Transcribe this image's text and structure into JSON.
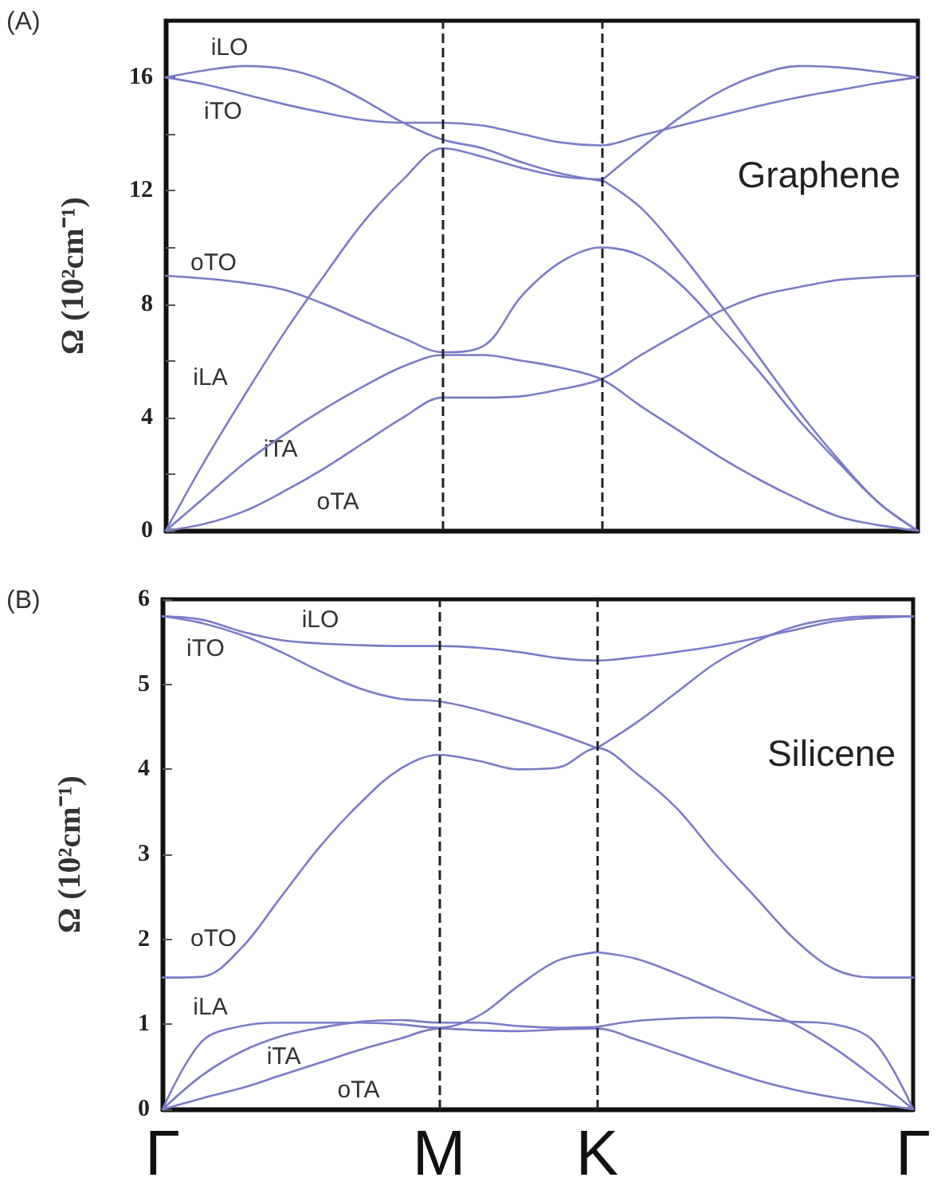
{
  "chart_data": [
    {
      "type": "line",
      "title": "Graphene",
      "ylabel": "Ω (10²cm⁻¹)",
      "marker": "none",
      "grid": false,
      "tick_labels": "y",
      "annotations": [
        "(A)",
        "iLO",
        "iTO",
        "oTO",
        "iLA",
        "iTA",
        "oTA"
      ],
      "categories": [
        "Γ",
        null,
        null,
        null,
        null,
        null,
        null,
        "M",
        null,
        null,
        null,
        "K",
        null,
        null,
        null,
        null,
        null,
        null,
        null,
        "Γ"
      ],
      "ylim": [
        0,
        18
      ],
      "yticks": [
        0,
        {
          "value": 2,
          "label": null
        },
        4,
        {
          "value": 6,
          "label": null
        },
        8,
        {
          "value": 10,
          "label": null
        },
        12,
        {
          "value": 14,
          "label": null
        },
        16
      ],
      "ref_lines": [
        {
          "axis": "x",
          "value": "M",
          "color": "#222222",
          "line_style": "dashed"
        },
        {
          "axis": "x",
          "value": "K",
          "color": "#222222",
          "line_style": "dashed"
        }
      ],
      "series": [
        {
          "color": "#7b7bc8",
          "values": [
            0,
            0.25,
            0.7,
            1.4,
            2.2,
            3.1,
            4.0,
            4.7,
            4.7,
            4.75,
            5.0,
            5.35,
            6.2,
            7.0,
            7.75,
            8.3,
            8.6,
            8.85,
            8.95,
            9.0
          ]
        },
        {
          "color": "#7b7bc8",
          "values": [
            0,
            1.2,
            2.4,
            3.4,
            4.3,
            5.1,
            5.8,
            6.2,
            6.2,
            6.0,
            5.75,
            5.35,
            4.4,
            3.5,
            2.6,
            1.8,
            1.1,
            0.5,
            0.2,
            0
          ]
        },
        {
          "color": "#7b7bc8",
          "values": [
            0,
            2.5,
            4.8,
            7.0,
            9.0,
            10.9,
            12.4,
            13.5,
            13.2,
            12.8,
            12.5,
            12.4,
            null,
            null,
            null,
            null,
            null,
            null,
            null,
            null
          ]
        },
        {
          "color": "#7b7bc8",
          "values": [
            null,
            null,
            null,
            null,
            null,
            null,
            null,
            null,
            null,
            null,
            null,
            12.4,
            11.4,
            9.8,
            8.0,
            6.1,
            4.2,
            2.5,
            1.0,
            0
          ]
        },
        {
          "color": "#7b7bc8",
          "values": [
            9.0,
            8.9,
            8.75,
            8.5,
            8.0,
            7.4,
            6.8,
            6.3,
            6.5,
            8.3,
            9.5,
            10.0,
            9.7,
            8.7,
            7.2,
            5.6,
            3.9,
            2.4,
            1.0,
            0
          ]
        },
        {
          "color": "#7b7bc8",
          "values": [
            16,
            15.75,
            15.4,
            15.05,
            14.75,
            14.5,
            14.4,
            14.4,
            14.3,
            14.0,
            13.7,
            13.6,
            13.95,
            14.3,
            14.65,
            15.0,
            15.3,
            15.55,
            15.8,
            16
          ]
        },
        {
          "color": "#7b7bc8",
          "values": [
            16,
            16.25,
            16.4,
            16.3,
            15.9,
            15.2,
            14.4,
            13.8,
            13.5,
            13.0,
            12.6,
            12.35,
            null,
            null,
            null,
            null,
            null,
            null,
            null,
            null
          ]
        },
        {
          "color": "#7b7bc8",
          "values": [
            null,
            null,
            null,
            null,
            null,
            null,
            null,
            null,
            null,
            null,
            null,
            12.35,
            13.5,
            14.6,
            15.5,
            16.1,
            16.4,
            16.35,
            16.2,
            16
          ]
        }
      ]
    },
    {
      "type": "line",
      "title": "Silicene",
      "ylabel": "Ω (10²cm⁻¹)",
      "marker": "none",
      "grid": false,
      "annotations": [
        "(B)",
        "iLO",
        "iTO",
        "oTO",
        "iLA",
        "iTA",
        "oTA"
      ],
      "categories": [
        "Γ",
        null,
        null,
        null,
        null,
        null,
        null,
        "M",
        null,
        null,
        null,
        "K",
        null,
        null,
        null,
        null,
        null,
        null,
        null,
        "Γ"
      ],
      "ylim": [
        0,
        6
      ],
      "yticks": [
        0,
        1,
        2,
        3,
        4,
        5,
        6
      ],
      "ref_lines": [
        {
          "axis": "x",
          "value": "M",
          "color": "#222222",
          "line_style": "dashed"
        },
        {
          "axis": "x",
          "value": "K",
          "color": "#222222",
          "line_style": "dashed"
        }
      ],
      "series": [
        {
          "color": "#7b7bc8",
          "values": [
            0,
            0.13,
            0.25,
            0.4,
            0.55,
            0.7,
            0.83,
            0.95,
            0.93,
            0.92,
            0.94,
            0.95,
            0.82,
            0.66,
            0.5,
            0.35,
            0.23,
            0.14,
            0.07,
            0
          ]
        },
        {
          "color": "#7b7bc8",
          "values": [
            0,
            0.4,
            0.68,
            0.86,
            0.96,
            1.03,
            1.05,
            1.02,
            1.02,
            0.98,
            0.96,
            0.97,
            null,
            null,
            null,
            null,
            null,
            null,
            null,
            null
          ]
        },
        {
          "color": "#7b7bc8",
          "values": [
            null,
            null,
            null,
            null,
            null,
            null,
            null,
            null,
            null,
            null,
            null,
            0.97,
            1.04,
            1.07,
            1.08,
            1.06,
            1.03,
            1.0,
            0.8,
            0
          ]
        },
        {
          "color": "#7b7bc8",
          "values": [
            0,
            0.8,
            0.98,
            1.02,
            1.02,
            1.02,
            1.0,
            0.96,
            1.1,
            1.45,
            1.75,
            1.85,
            null,
            null,
            null,
            null,
            null,
            null,
            null,
            null
          ]
        },
        {
          "color": "#7b7bc8",
          "values": [
            null,
            null,
            null,
            null,
            null,
            null,
            null,
            null,
            null,
            null,
            null,
            1.85,
            1.77,
            1.6,
            1.4,
            1.2,
            1.0,
            0.72,
            0.38,
            0
          ]
        },
        {
          "color": "#7b7bc8",
          "values": [
            1.55,
            1.56,
            1.9,
            2.5,
            3.1,
            3.6,
            4.0,
            4.17,
            4.1,
            4.0,
            4.02,
            4.25,
            3.95,
            3.55,
            3.0,
            2.5,
            2.0,
            1.65,
            1.55,
            1.55
          ]
        },
        {
          "color": "#7b7bc8",
          "values": [
            5.8,
            5.72,
            5.58,
            5.38,
            5.15,
            4.95,
            4.83,
            4.8,
            4.7,
            4.57,
            4.42,
            4.25,
            null,
            null,
            null,
            null,
            null,
            null,
            null,
            null
          ]
        },
        {
          "color": "#7b7bc8",
          "values": [
            null,
            null,
            null,
            null,
            null,
            null,
            null,
            null,
            null,
            null,
            null,
            4.25,
            4.55,
            4.9,
            5.25,
            5.5,
            5.68,
            5.77,
            5.8,
            5.8
          ]
        },
        {
          "color": "#7b7bc8",
          "values": [
            5.8,
            5.76,
            5.62,
            5.52,
            5.48,
            5.46,
            5.45,
            5.45,
            5.43,
            5.38,
            5.31,
            5.28,
            5.32,
            5.38,
            5.45,
            5.54,
            5.64,
            5.74,
            5.78,
            5.8
          ]
        }
      ]
    }
  ]
}
